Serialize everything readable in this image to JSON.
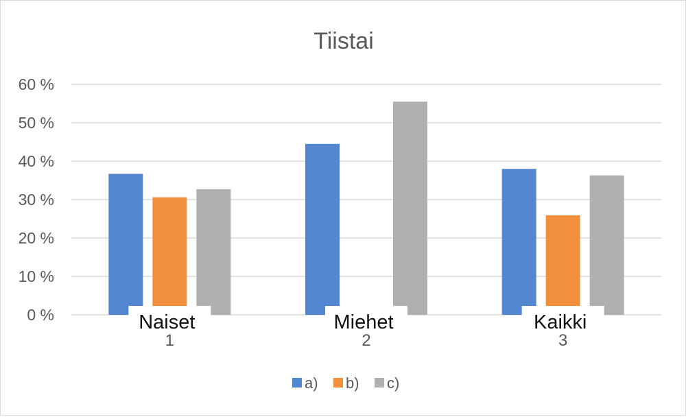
{
  "chart_data": {
    "type": "bar",
    "title": "Tiistai",
    "categories": [
      "1",
      "2",
      "3"
    ],
    "category_overlay_labels": [
      "Naiset",
      "Miehet",
      "Kaikki"
    ],
    "y_ticks": [
      "0 %",
      "10 %",
      "20 %",
      "30 %",
      "40 %",
      "50 %",
      "60 %"
    ],
    "ylim": [
      0,
      60
    ],
    "y_unit": "%",
    "grid": true,
    "legend_position": "bottom",
    "series": [
      {
        "name": "a)",
        "color": "#5386d0",
        "values": [
          36.7,
          44.5,
          38
        ]
      },
      {
        "name": "b)",
        "color": "#f28f3c",
        "values": [
          30.6,
          0,
          25.9
        ]
      },
      {
        "name": "c)",
        "color": "#b0b0b0",
        "values": [
          32.7,
          55.5,
          36.3
        ]
      }
    ]
  }
}
